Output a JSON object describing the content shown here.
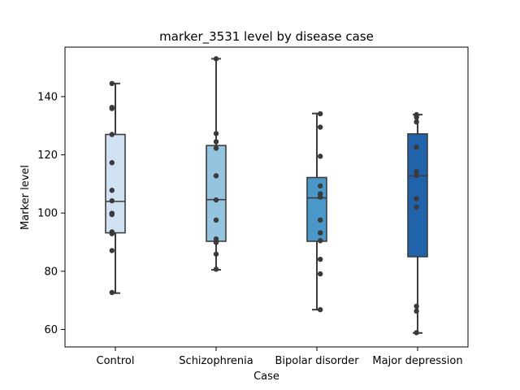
{
  "chart_data": {
    "type": "box",
    "title": "marker_3531 level by disease case",
    "xlabel": "Case",
    "ylabel": "Marker level",
    "categories": [
      "Control",
      "Schizophrenia",
      "Bipolar disorder",
      "Major depression"
    ],
    "ylim": [
      54,
      157
    ],
    "yticks": [
      60,
      80,
      100,
      120,
      140
    ],
    "grid": false,
    "legend": "none",
    "box_colors": [
      "#d0e1f2",
      "#94c4df",
      "#4a98c9",
      "#2163aa"
    ],
    "point_color": "#3a3a3a",
    "boxes": [
      {
        "category": "Control",
        "min": 72.5,
        "q1": 93.2,
        "median": 104.0,
        "q3": 127.0,
        "max": 144.5,
        "points": [
          144.5,
          136.3,
          135.9,
          127.0,
          117.3,
          107.8,
          104.2,
          99.9,
          99.5,
          93.5,
          92.9,
          87.1,
          72.7
        ]
      },
      {
        "category": "Schizophrenia",
        "min": 80.5,
        "q1": 90.3,
        "median": 104.6,
        "q3": 123.2,
        "max": 153.0,
        "points": [
          153.0,
          127.3,
          124.5,
          122.3,
          112.8,
          104.5,
          97.6,
          91.1,
          89.9,
          85.9,
          80.7
        ]
      },
      {
        "category": "Bipolar disorder",
        "min": 66.8,
        "q1": 90.3,
        "median": 105.2,
        "q3": 112.2,
        "max": 134.2,
        "points": [
          134.1,
          129.5,
          119.5,
          109.3,
          106.6,
          105.5,
          97.6,
          93.2,
          90.5,
          84.1,
          79.1,
          66.8
        ]
      },
      {
        "category": "Major depression",
        "min": 58.8,
        "q1": 85.0,
        "median": 112.8,
        "q3": 127.2,
        "max": 133.8,
        "points": [
          133.8,
          133.5,
          132.9,
          131.3,
          122.6,
          114.2,
          112.9,
          104.9,
          102.0,
          68.0,
          66.3,
          58.9
        ]
      }
    ]
  }
}
